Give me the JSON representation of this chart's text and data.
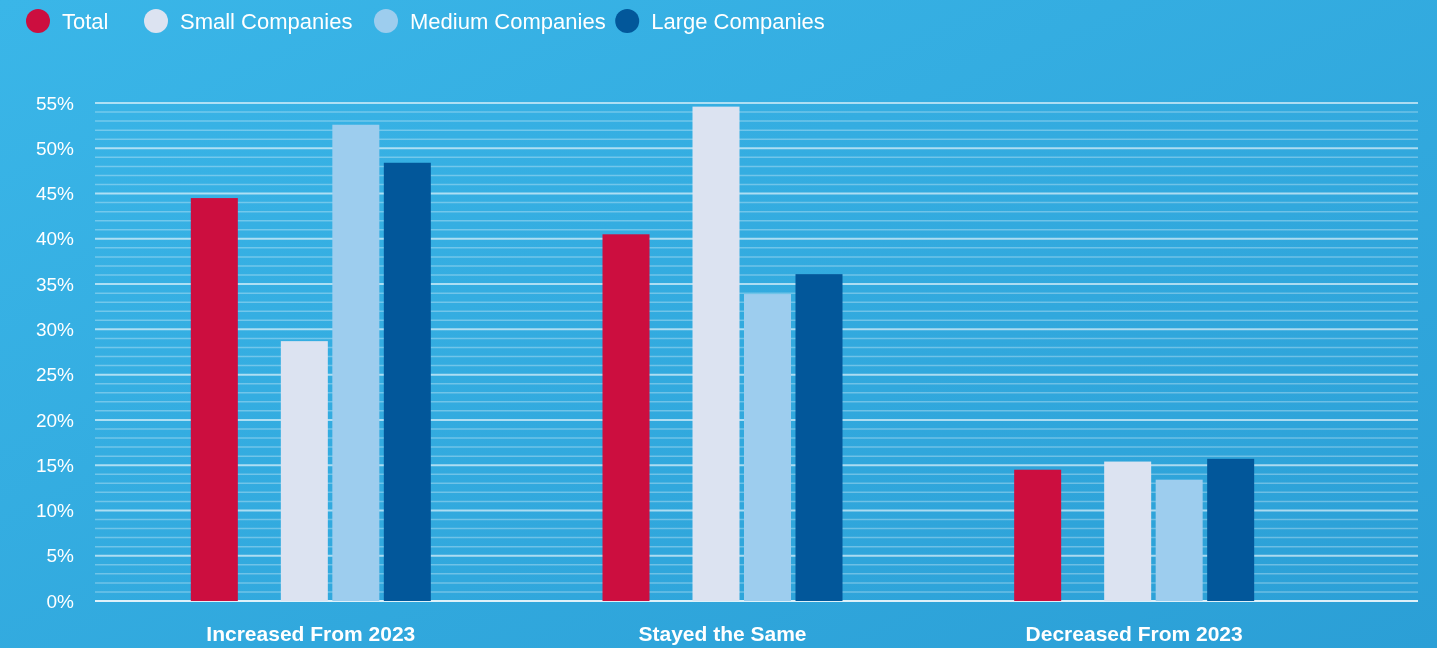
{
  "chart_data": {
    "type": "bar",
    "categories": [
      "Increased From 2023",
      "Stayed the Same",
      "Decreased From 2023"
    ],
    "series": [
      {
        "name": "Total",
        "color": "#cc0e3f",
        "values": [
          44.5,
          40.5,
          14.5
        ]
      },
      {
        "name": "Small Companies",
        "color": "#dce3f1",
        "values": [
          28.7,
          54.6,
          15.4
        ]
      },
      {
        "name": "Medium Companies",
        "color": "#9dcdee",
        "values": [
          52.6,
          33.9,
          13.4
        ]
      },
      {
        "name": "Large Companies",
        "color": "#02579a",
        "values": [
          48.4,
          36.1,
          15.7
        ]
      }
    ],
    "ylim": [
      0,
      55
    ],
    "yticks": [
      {
        "value": 0,
        "label": "0%"
      },
      {
        "value": 1,
        "label": null
      },
      {
        "value": 2,
        "label": null
      },
      {
        "value": 3,
        "label": null
      },
      {
        "value": 4,
        "label": null
      },
      {
        "value": 5,
        "label": "5%"
      },
      {
        "value": 6,
        "label": null
      },
      {
        "value": 7,
        "label": null
      },
      {
        "value": 8,
        "label": null
      },
      {
        "value": 9,
        "label": null
      },
      {
        "value": 10,
        "label": "10%"
      },
      {
        "value": 11,
        "label": null
      },
      {
        "value": 12,
        "label": null
      },
      {
        "value": 13,
        "label": null
      },
      {
        "value": 14,
        "label": null
      },
      {
        "value": 15,
        "label": "15%"
      },
      {
        "value": 16,
        "label": null
      },
      {
        "value": 17,
        "label": null
      },
      {
        "value": 18,
        "label": null
      },
      {
        "value": 19,
        "label": null
      },
      {
        "value": 20,
        "label": "20%"
      },
      {
        "value": 21,
        "label": null
      },
      {
        "value": 22,
        "label": null
      },
      {
        "value": 23,
        "label": null
      },
      {
        "value": 24,
        "label": null
      },
      {
        "value": 25,
        "label": "25%"
      },
      {
        "value": 26,
        "label": null
      },
      {
        "value": 27,
        "label": null
      },
      {
        "value": 28,
        "label": null
      },
      {
        "value": 29,
        "label": null
      },
      {
        "value": 30,
        "label": "30%"
      },
      {
        "value": 31,
        "label": null
      },
      {
        "value": 32,
        "label": null
      },
      {
        "value": 33,
        "label": null
      },
      {
        "value": 34,
        "label": null
      },
      {
        "value": 35,
        "label": "35%"
      },
      {
        "value": 36,
        "label": null
      },
      {
        "value": 37,
        "label": null
      },
      {
        "value": 38,
        "label": null
      },
      {
        "value": 39,
        "label": null
      },
      {
        "value": 40,
        "label": "40%"
      },
      {
        "value": 41,
        "label": null
      },
      {
        "value": 42,
        "label": null
      },
      {
        "value": 43,
        "label": null
      },
      {
        "value": 44,
        "label": null
      },
      {
        "value": 45,
        "label": "45%"
      },
      {
        "value": 46,
        "label": null
      },
      {
        "value": 47,
        "label": null
      },
      {
        "value": 48,
        "label": null
      },
      {
        "value": 49,
        "label": null
      },
      {
        "value": 50,
        "label": "50%"
      },
      {
        "value": 51,
        "label": null
      },
      {
        "value": 52,
        "label": null
      },
      {
        "value": 53,
        "label": null
      },
      {
        "value": 54,
        "label": null
      },
      {
        "value": 55,
        "label": "55%"
      }
    ],
    "grid": "y",
    "legend": "top left"
  }
}
